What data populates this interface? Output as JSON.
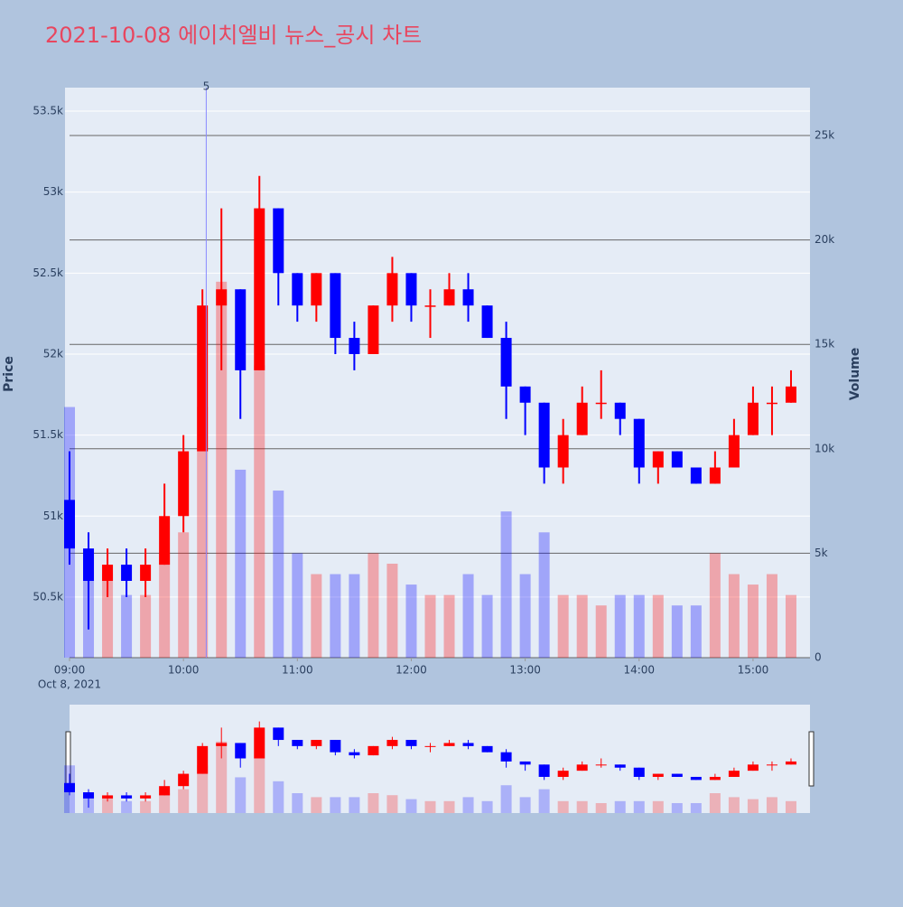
{
  "chart_data": {
    "type": "candlestick",
    "title": "2021-10-08 에이치엘비 뉴스_공시 차트",
    "y_label": "Price",
    "y2_label": "Volume",
    "annotation": {
      "x": "2021-10-08 10:12",
      "text": "5"
    },
    "date_label": "Oct 8, 2021",
    "increasing_color": "#ff0000",
    "decreasing_color": "#0000ff",
    "x": [
      "2021-10-08 09:00",
      "2021-10-08 09:10",
      "2021-10-08 09:20",
      "2021-10-08 09:30",
      "2021-10-08 09:40",
      "2021-10-08 09:50",
      "2021-10-08 10:00",
      "2021-10-08 10:10",
      "2021-10-08 10:20",
      "2021-10-08 10:30",
      "2021-10-08 10:40",
      "2021-10-08 10:50",
      "2021-10-08 11:00",
      "2021-10-08 11:10",
      "2021-10-08 11:20",
      "2021-10-08 11:30",
      "2021-10-08 11:40",
      "2021-10-08 11:50",
      "2021-10-08 12:00",
      "2021-10-08 12:10",
      "2021-10-08 12:20",
      "2021-10-08 12:30",
      "2021-10-08 12:40",
      "2021-10-08 12:50",
      "2021-10-08 13:00",
      "2021-10-08 13:10",
      "2021-10-08 13:20",
      "2021-10-08 13:30",
      "2021-10-08 13:40",
      "2021-10-08 13:50",
      "2021-10-08 14:00",
      "2021-10-08 14:10",
      "2021-10-08 14:20",
      "2021-10-08 14:30",
      "2021-10-08 14:40",
      "2021-10-08 14:50",
      "2021-10-08 15:00",
      "2021-10-08 15:10",
      "2021-10-08 15:20"
    ],
    "open": [
      51100,
      50800,
      50600,
      50700,
      50600,
      50700,
      51000,
      51400,
      52300,
      52400,
      51900,
      52900,
      52500,
      52300,
      52500,
      52100,
      52000,
      52300,
      52500,
      52300,
      52300,
      52400,
      52300,
      52100,
      51800,
      51700,
      51300,
      51500,
      51700,
      51700,
      51600,
      51300,
      51400,
      51300,
      51200,
      51300,
      51500,
      51700,
      51700
    ],
    "high": [
      51400,
      50900,
      50800,
      50800,
      50800,
      51200,
      51500,
      52400,
      52900,
      52400,
      53100,
      52900,
      52500,
      52500,
      52500,
      52200,
      52300,
      52600,
      52500,
      52400,
      52500,
      52500,
      52300,
      52200,
      51800,
      51700,
      51600,
      51800,
      51900,
      51700,
      51600,
      51400,
      51400,
      51300,
      51400,
      51600,
      51800,
      51800,
      51900
    ],
    "low": [
      50700,
      50300,
      50500,
      50500,
      50500,
      50700,
      50900,
      51400,
      51900,
      51600,
      51900,
      52300,
      52200,
      52200,
      52000,
      51900,
      52000,
      52200,
      52200,
      52100,
      52300,
      52200,
      52100,
      51600,
      51500,
      51200,
      51200,
      51500,
      51600,
      51500,
      51200,
      51200,
      51300,
      51200,
      51200,
      51300,
      51500,
      51500,
      51700
    ],
    "close": [
      50800,
      50600,
      50700,
      50600,
      50700,
      51000,
      51400,
      52300,
      52400,
      51900,
      52900,
      52500,
      52300,
      52500,
      52100,
      52000,
      52300,
      52500,
      52300,
      52300,
      52400,
      52300,
      52100,
      51800,
      51700,
      51300,
      51500,
      51700,
      51700,
      51600,
      51300,
      51400,
      51300,
      51200,
      51300,
      51500,
      51700,
      51700,
      51800
    ],
    "volume": [
      12000,
      5000,
      4000,
      3000,
      3000,
      5000,
      6000,
      12000,
      18000,
      9000,
      14000,
      8000,
      5000,
      4000,
      4000,
      4000,
      5000,
      4500,
      3500,
      3000,
      3000,
      4000,
      3000,
      7000,
      4000,
      6000,
      3000,
      3000,
      2500,
      3000,
      3000,
      3000,
      2500,
      2500,
      5000,
      4000,
      3500,
      4000,
      3000
    ],
    "xlim": [
      "2021-10-08 09:00",
      "2021-10-08 15:30"
    ],
    "xticks": [
      {
        "value": "2021-10-08 09:00",
        "label": "09:00"
      },
      {
        "value": "2021-10-08 10:00",
        "label": "10:00"
      },
      {
        "value": "2021-10-08 11:00",
        "label": "11:00"
      },
      {
        "value": "2021-10-08 12:00",
        "label": "12:00"
      },
      {
        "value": "2021-10-08 13:00",
        "label": "13:00"
      },
      {
        "value": "2021-10-08 14:00",
        "label": "14:00"
      },
      {
        "value": "2021-10-08 15:00",
        "label": "15:00"
      }
    ],
    "ylim": [
      50126,
      53645
    ],
    "yticks": [
      {
        "value": 50500,
        "label": "50.5k"
      },
      {
        "value": 51000,
        "label": "51k"
      },
      {
        "value": 51500,
        "label": "51.5k"
      },
      {
        "value": 52000,
        "label": "52k"
      },
      {
        "value": 52500,
        "label": "52.5k"
      },
      {
        "value": 53000,
        "label": "53k"
      },
      {
        "value": 53500,
        "label": "53.5k"
      }
    ],
    "y2lim": [
      0,
      27292
    ],
    "y2ticks": [
      0,
      {
        "value": 5000,
        "label": "5k"
      },
      {
        "value": 10000,
        "label": "10k"
      },
      {
        "value": 15000,
        "label": "15k"
      },
      {
        "value": 20000,
        "label": "20k"
      },
      {
        "value": 25000,
        "label": "25k"
      }
    ]
  }
}
